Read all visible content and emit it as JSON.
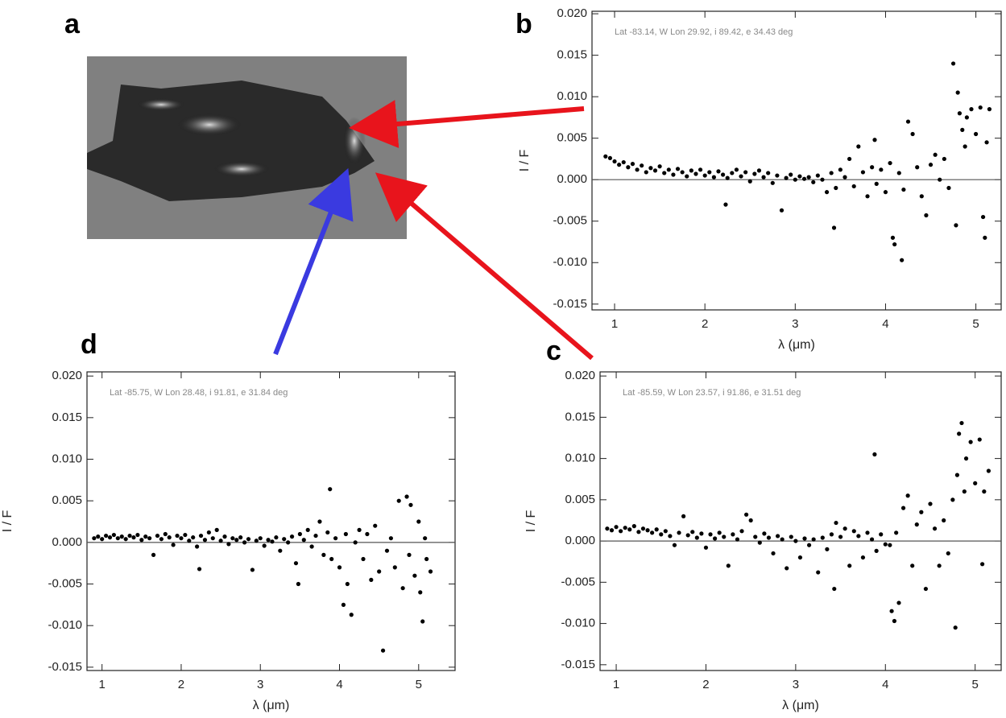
{
  "image_panel": {
    "label": "a"
  },
  "chart_data": [
    {
      "type": "scatter",
      "panel": "b",
      "subtitle": "Lat -83.14, W Lon 29.92, i 89.42, e 34.43 deg",
      "xlabel": "λ (μm)",
      "ylabel": "I / F",
      "color": "#000000",
      "hline": 0,
      "xlim": [
        0.75,
        5.28
      ],
      "ylim": [
        -0.0157,
        0.0203
      ],
      "xticks": [
        1,
        2,
        3,
        4,
        5
      ],
      "yticks": [
        {
          "value": 0.02,
          "label": "0.020"
        },
        {
          "value": 0.015,
          "label": "0.015"
        },
        {
          "value": 0.01,
          "label": "0.010"
        },
        {
          "value": 0.005,
          "label": "0.005"
        },
        {
          "value": 0,
          "label": "0.000"
        },
        {
          "value": -0.005,
          "label": "-0.005"
        },
        {
          "value": -0.01,
          "label": "-0.010"
        },
        {
          "value": -0.015,
          "label": "-0.015"
        }
      ],
      "x": [
        0.9,
        0.95,
        1.0,
        1.05,
        1.1,
        1.15,
        1.2,
        1.25,
        1.3,
        1.35,
        1.4,
        1.45,
        1.5,
        1.55,
        1.6,
        1.65,
        1.7,
        1.75,
        1.8,
        1.85,
        1.9,
        1.95,
        2.0,
        2.05,
        2.1,
        2.15,
        2.2,
        2.23,
        2.25,
        2.3,
        2.35,
        2.4,
        2.45,
        2.5,
        2.55,
        2.6,
        2.65,
        2.7,
        2.75,
        2.8,
        2.85,
        2.9,
        2.95,
        3.0,
        3.05,
        3.1,
        3.15,
        3.2,
        3.25,
        3.3,
        3.35,
        3.4,
        3.43,
        3.45,
        3.5,
        3.55,
        3.6,
        3.65,
        3.7,
        3.75,
        3.8,
        3.85,
        3.88,
        3.9,
        3.95,
        4.0,
        4.05,
        4.08,
        4.1,
        4.15,
        4.18,
        4.2,
        4.25,
        4.3,
        4.35,
        4.4,
        4.45,
        4.5,
        4.55,
        4.6,
        4.65,
        4.7,
        4.75,
        4.78,
        4.8,
        4.82,
        4.85,
        4.88,
        4.9,
        4.95,
        5.0,
        5.05,
        5.08,
        5.1,
        5.12,
        5.15
      ],
      "values": [
        0.0028,
        0.0026,
        0.0022,
        0.0018,
        0.0021,
        0.0015,
        0.0019,
        0.0012,
        0.0017,
        0.0009,
        0.0014,
        0.0011,
        0.0016,
        0.0008,
        0.0012,
        0.0006,
        0.0013,
        0.0009,
        0.0004,
        0.0011,
        0.0007,
        0.0012,
        0.0005,
        0.0009,
        0.0003,
        0.001,
        0.0006,
        -0.003,
        0.0002,
        0.0008,
        0.0012,
        0.0004,
        0.0009,
        -0.0002,
        0.0007,
        0.0011,
        0.0003,
        0.0008,
        -0.0004,
        0.0005,
        -0.0037,
        0.0002,
        0.0006,
        0,
        0.0004,
        0.0001,
        0.0003,
        -0.0003,
        0.0005,
        0,
        -0.0015,
        0.0008,
        -0.0058,
        -0.001,
        0.0012,
        0.0003,
        0.0025,
        -0.0008,
        0.004,
        0.0009,
        -0.002,
        0.0015,
        0.0048,
        -0.0005,
        0.0012,
        -0.0015,
        0.002,
        -0.007,
        -0.0078,
        0.0008,
        -0.0097,
        -0.0012,
        0.007,
        0.0055,
        0.0015,
        -0.002,
        -0.0043,
        0.0018,
        0.003,
        0,
        0.0025,
        -0.001,
        0.014,
        -0.0055,
        0.0105,
        0.008,
        0.006,
        0.004,
        0.0075,
        0.0085,
        0.0055,
        0.0087,
        -0.0045,
        -0.007,
        0.0045,
        0.0085
      ]
    },
    {
      "type": "scatter",
      "panel": "c",
      "subtitle": "Lat -85.59, W Lon 23.57, i 91.86, e 31.51 deg",
      "xlabel": "λ (μm)",
      "ylabel": "I / F",
      "color": "#000000",
      "hline": 0,
      "xlim": [
        0.82,
        5.29
      ],
      "ylim": [
        -0.0157,
        0.0205
      ],
      "xticks": [
        1,
        2,
        3,
        4,
        5
      ],
      "yticks": [
        {
          "value": 0.02,
          "label": "0.020"
        },
        {
          "value": 0.015,
          "label": "0.015"
        },
        {
          "value": 0.01,
          "label": "0.010"
        },
        {
          "value": 0.005,
          "label": "0.005"
        },
        {
          "value": 0,
          "label": "0.000"
        },
        {
          "value": -0.005,
          "label": "-0.005"
        },
        {
          "value": -0.01,
          "label": "-0.010"
        },
        {
          "value": -0.015,
          "label": "-0.015"
        }
      ],
      "x": [
        0.9,
        0.95,
        1.0,
        1.05,
        1.1,
        1.15,
        1.2,
        1.25,
        1.3,
        1.35,
        1.4,
        1.45,
        1.5,
        1.55,
        1.6,
        1.65,
        1.7,
        1.75,
        1.8,
        1.85,
        1.9,
        1.95,
        2.0,
        2.05,
        2.1,
        2.15,
        2.2,
        2.25,
        2.3,
        2.35,
        2.4,
        2.45,
        2.5,
        2.55,
        2.6,
        2.65,
        2.7,
        2.75,
        2.8,
        2.85,
        2.9,
        2.95,
        3.0,
        3.05,
        3.1,
        3.15,
        3.2,
        3.25,
        3.3,
        3.35,
        3.4,
        3.43,
        3.45,
        3.5,
        3.55,
        3.6,
        3.65,
        3.7,
        3.75,
        3.8,
        3.85,
        3.88,
        3.9,
        3.95,
        4.0,
        4.05,
        4.07,
        4.1,
        4.12,
        4.15,
        4.2,
        4.25,
        4.3,
        4.35,
        4.4,
        4.45,
        4.5,
        4.55,
        4.6,
        4.65,
        4.7,
        4.75,
        4.78,
        4.8,
        4.82,
        4.85,
        4.88,
        4.9,
        4.95,
        5.0,
        5.05,
        5.08,
        5.1,
        5.15
      ],
      "values": [
        0.0015,
        0.0013,
        0.0017,
        0.0012,
        0.0016,
        0.0014,
        0.0018,
        0.0011,
        0.0015,
        0.0013,
        0.001,
        0.0014,
        0.0008,
        0.0012,
        0.0006,
        -0.0005,
        0.001,
        0.003,
        0.0007,
        0.0011,
        0.0004,
        0.0009,
        -0.0008,
        0.0008,
        0.0003,
        0.001,
        0.0005,
        -0.003,
        0.0008,
        0.0002,
        0.0012,
        0.0032,
        0.0025,
        0.0005,
        -0.0002,
        0.0009,
        0.0004,
        -0.0015,
        0.0006,
        0.0002,
        -0.0033,
        0.0005,
        0,
        -0.002,
        0.0003,
        -0.0005,
        0.0002,
        -0.0038,
        0.0004,
        -0.001,
        0.0008,
        -0.0058,
        0.0022,
        0.0005,
        0.0015,
        -0.003,
        0.0012,
        0.0006,
        -0.002,
        0.001,
        0.0002,
        0.0105,
        -0.0012,
        0.0008,
        -0.0004,
        -0.0005,
        -0.0085,
        -0.0097,
        0.001,
        -0.0075,
        0.004,
        0.0055,
        -0.003,
        0.002,
        0.0035,
        -0.0058,
        0.0045,
        0.0015,
        -0.003,
        0.0025,
        -0.0015,
        0.005,
        -0.0105,
        0.008,
        0.013,
        0.0143,
        0.006,
        0.01,
        0.012,
        0.007,
        0.0123,
        -0.0028,
        0.006,
        0.0085
      ]
    },
    {
      "type": "scatter",
      "panel": "d",
      "subtitle": "Lat -85.75, W Lon 28.48, i 91.81, e 31.84 deg",
      "xlabel": "λ (μm)",
      "ylabel": "I / F",
      "color": "#000000",
      "hline": 0,
      "xlim": [
        0.81,
        5.46
      ],
      "ylim": [
        -0.0154,
        0.0205
      ],
      "xticks": [
        1,
        2,
        3,
        4,
        5
      ],
      "yticks": [
        {
          "value": 0.02,
          "label": "0.020"
        },
        {
          "value": 0.015,
          "label": "0.015"
        },
        {
          "value": 0.01,
          "label": "0.010"
        },
        {
          "value": 0.005,
          "label": "0.005"
        },
        {
          "value": 0,
          "label": "0.000"
        },
        {
          "value": -0.005,
          "label": "-0.005"
        },
        {
          "value": -0.01,
          "label": "-0.010"
        },
        {
          "value": -0.015,
          "label": "-0.015"
        }
      ],
      "x": [
        0.9,
        0.95,
        1.0,
        1.05,
        1.1,
        1.15,
        1.2,
        1.25,
        1.3,
        1.35,
        1.4,
        1.45,
        1.5,
        1.55,
        1.6,
        1.65,
        1.7,
        1.75,
        1.8,
        1.85,
        1.9,
        1.95,
        2.0,
        2.05,
        2.1,
        2.15,
        2.2,
        2.23,
        2.25,
        2.3,
        2.35,
        2.4,
        2.45,
        2.5,
        2.55,
        2.6,
        2.65,
        2.7,
        2.75,
        2.8,
        2.85,
        2.9,
        2.95,
        3.0,
        3.05,
        3.1,
        3.15,
        3.2,
        3.25,
        3.3,
        3.35,
        3.4,
        3.45,
        3.48,
        3.5,
        3.55,
        3.6,
        3.65,
        3.7,
        3.75,
        3.8,
        3.85,
        3.88,
        3.9,
        3.95,
        4.0,
        4.05,
        4.08,
        4.1,
        4.15,
        4.2,
        4.25,
        4.3,
        4.35,
        4.4,
        4.45,
        4.5,
        4.55,
        4.6,
        4.65,
        4.7,
        4.75,
        4.8,
        4.85,
        4.88,
        4.9,
        4.95,
        5.0,
        5.02,
        5.05,
        5.08,
        5.1,
        5.15
      ],
      "values": [
        0.0005,
        0.0007,
        0.0004,
        0.0008,
        0.0006,
        0.0009,
        0.0005,
        0.0007,
        0.0004,
        0.0008,
        0.0006,
        0.0009,
        0.0003,
        0.0007,
        0.0005,
        -0.0015,
        0.0008,
        0.0004,
        0.001,
        0.0006,
        -0.0003,
        0.0008,
        0.0005,
        0.0009,
        0.0002,
        0.0006,
        -0.0005,
        -0.0032,
        0.0008,
        0.0003,
        0.0012,
        0.0005,
        0.0015,
        0.0002,
        0.0007,
        -0.0002,
        0.0005,
        0.0003,
        0.0006,
        0,
        0.0004,
        -0.0033,
        0.0002,
        0.0005,
        -0.0004,
        0.0003,
        0.0001,
        0.0006,
        -0.001,
        0.0004,
        0,
        0.0007,
        -0.0025,
        -0.005,
        0.001,
        0.0003,
        0.0015,
        -0.0005,
        0.0008,
        0.0025,
        -0.0015,
        0.0012,
        0.0064,
        -0.002,
        0.0005,
        -0.003,
        -0.0075,
        0.001,
        -0.005,
        -0.0087,
        0,
        0.0015,
        -0.002,
        0.001,
        -0.0045,
        0.002,
        -0.0035,
        -0.013,
        -0.001,
        0.0005,
        -0.003,
        0.005,
        -0.0055,
        0.0055,
        -0.0015,
        0.0045,
        -0.004,
        0.0025,
        -0.006,
        -0.0095,
        0.0005,
        -0.002,
        -0.0035
      ]
    }
  ]
}
